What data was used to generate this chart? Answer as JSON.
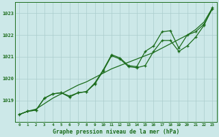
{
  "title": "Graphe pression niveau de la mer (hPa)",
  "bg_color": "#cce8e8",
  "grid_color": "#aacccc",
  "line_color": "#1a6b1a",
  "x_ticks": [
    0,
    1,
    2,
    3,
    4,
    5,
    6,
    7,
    8,
    9,
    10,
    11,
    12,
    13,
    14,
    15,
    16,
    17,
    18,
    19,
    20,
    21,
    22,
    23
  ],
  "ylim": [
    1018.0,
    1023.5
  ],
  "yticks": [
    1019,
    1020,
    1021,
    1022,
    1023
  ],
  "series_smooth": [
    1018.35,
    1018.5,
    1018.6,
    1018.85,
    1019.1,
    1019.3,
    1019.5,
    1019.7,
    1019.85,
    1020.05,
    1020.25,
    1020.45,
    1020.6,
    1020.75,
    1020.9,
    1021.05,
    1021.2,
    1021.4,
    1021.6,
    1021.8,
    1022.0,
    1022.25,
    1022.6,
    1023.25
  ],
  "series_mid": [
    1018.35,
    1018.5,
    1018.55,
    1019.1,
    1019.3,
    1019.35,
    1019.15,
    1019.35,
    1019.4,
    1019.75,
    1020.35,
    1021.05,
    1020.9,
    1020.55,
    1020.5,
    1020.6,
    1021.25,
    1021.75,
    1021.75,
    1021.25,
    1021.5,
    1021.9,
    1022.45,
    1023.25
  ],
  "series_upper": [
    1018.35,
    1018.5,
    1018.55,
    1019.1,
    1019.3,
    1019.35,
    1019.2,
    1019.35,
    1019.4,
    1019.8,
    1020.4,
    1021.1,
    1020.95,
    1020.6,
    1020.55,
    1021.25,
    1021.5,
    1022.15,
    1022.2,
    1021.4,
    1022.0,
    1022.15,
    1022.5,
    1023.2
  ]
}
